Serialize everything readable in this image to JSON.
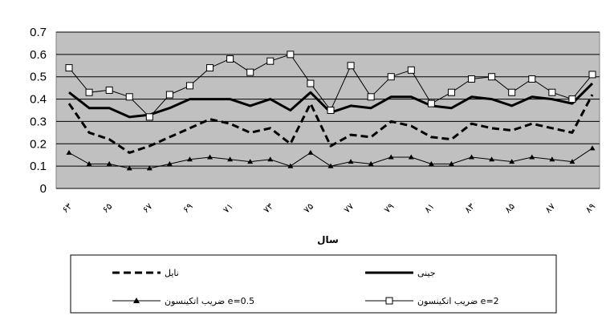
{
  "chart_data": {
    "type": "line",
    "title": "",
    "xlabel": "سال",
    "ylabel": "",
    "ylim": [
      0,
      0.7
    ],
    "yticks": [
      "0",
      "0.1",
      "0.2",
      "0.3",
      "0.4",
      "0.5",
      "0.6",
      "0.7"
    ],
    "grid": true,
    "legend_position": "bottom",
    "x": [
      63,
      64,
      65,
      66,
      67,
      68,
      69,
      70,
      71,
      72,
      73,
      74,
      75,
      76,
      77,
      78,
      79,
      80,
      81,
      82,
      83,
      84,
      85,
      86,
      87,
      88,
      89
    ],
    "x_tick_labels": [
      "۶۳",
      "۶۵",
      "۶۷",
      "۶۹",
      "۷۱",
      "۷۳",
      "۷۵",
      "۷۷",
      "۷۹",
      "۸۱",
      "۸۳",
      "۸۵",
      "۸۷",
      "۸۹"
    ],
    "series": [
      {
        "name": "نایل",
        "style": "dashed",
        "values": [
          0.38,
          0.25,
          0.22,
          0.16,
          0.19,
          0.23,
          0.27,
          0.31,
          0.29,
          0.25,
          0.27,
          0.2,
          0.38,
          0.19,
          0.24,
          0.23,
          0.3,
          0.28,
          0.23,
          0.22,
          0.29,
          0.27,
          0.26,
          0.29,
          0.27,
          0.25,
          0.42
        ]
      },
      {
        "name": "جینی",
        "style": "bold",
        "values": [
          0.43,
          0.36,
          0.36,
          0.32,
          0.33,
          0.36,
          0.4,
          0.4,
          0.4,
          0.37,
          0.4,
          0.35,
          0.43,
          0.34,
          0.37,
          0.36,
          0.41,
          0.41,
          0.37,
          0.36,
          0.41,
          0.4,
          0.37,
          0.41,
          0.4,
          0.38,
          0.47
        ]
      },
      {
        "name": "ضریب اتکینسون e=0.5",
        "style": "triangle",
        "values": [
          0.16,
          0.11,
          0.11,
          0.09,
          0.09,
          0.11,
          0.13,
          0.14,
          0.13,
          0.12,
          0.13,
          0.1,
          0.16,
          0.1,
          0.12,
          0.11,
          0.14,
          0.14,
          0.11,
          0.11,
          0.14,
          0.13,
          0.12,
          0.14,
          0.13,
          0.12,
          0.18
        ]
      },
      {
        "name": "ضریب اتکینسون e=2",
        "style": "square",
        "values": [
          0.54,
          0.43,
          0.44,
          0.41,
          0.32,
          0.42,
          0.46,
          0.54,
          0.58,
          0.52,
          0.57,
          0.6,
          0.47,
          0.35,
          0.55,
          0.41,
          0.5,
          0.53,
          0.38,
          0.43,
          0.49,
          0.5,
          0.43,
          0.49,
          0.43,
          0.4,
          0.51
        ]
      }
    ]
  },
  "colors": {
    "plot_bg": "#c0c0c0",
    "line": "#000000",
    "marker_fill": "#ffffff"
  }
}
